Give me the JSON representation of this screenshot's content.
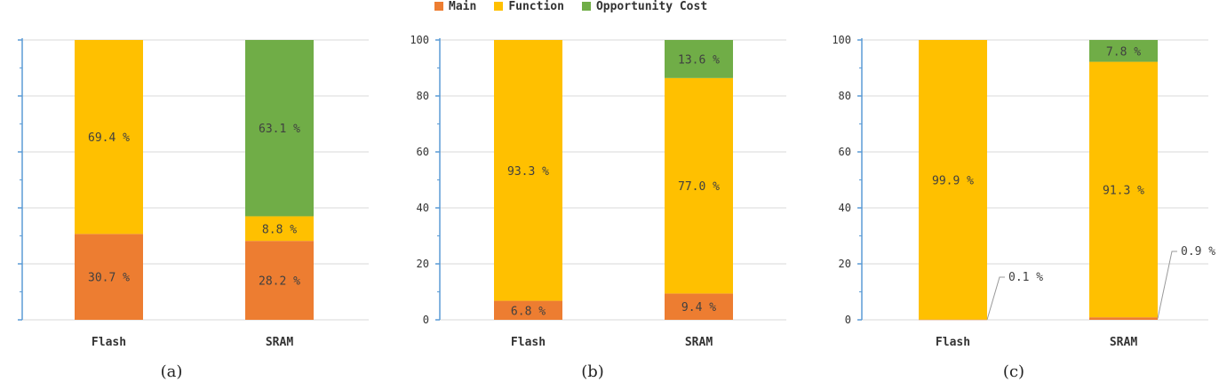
{
  "colors": {
    "main": "#ED7D31",
    "function": "#FFC000",
    "opportunity": "#70AD47",
    "axis": "#5B9BD5",
    "grid": "#D9D9D9"
  },
  "legend": [
    {
      "key": "main",
      "label": "Main"
    },
    {
      "key": "function",
      "label": "Function"
    },
    {
      "key": "opportunity",
      "label": "Opportunity Cost"
    }
  ],
  "captions": [
    "(a)",
    "(b)",
    "(c)"
  ],
  "chart_data": [
    {
      "type": "bar",
      "stacked": true,
      "categories": [
        "Flash",
        "SRAM"
      ],
      "ylim": [
        0,
        100
      ],
      "yticks": [
        "0",
        "20",
        "40",
        "60",
        "80",
        "100"
      ],
      "series": [
        {
          "name": "Main",
          "key": "main",
          "values": [
            30.7,
            28.2
          ],
          "labels": [
            "30.7 %",
            "28.2 %"
          ]
        },
        {
          "name": "Function",
          "key": "function",
          "values": [
            69.4,
            8.8
          ],
          "labels": [
            "69.4 %",
            "8.8 %"
          ]
        },
        {
          "name": "Opportunity Cost",
          "key": "opportunity",
          "values": [
            0,
            63.1
          ],
          "labels": [
            "",
            "63.1 %"
          ]
        }
      ]
    },
    {
      "type": "bar",
      "stacked": true,
      "categories": [
        "Flash",
        "SRAM"
      ],
      "ylim": [
        0,
        100
      ],
      "yticks": [
        "0",
        "20",
        "40",
        "60",
        "80",
        "100"
      ],
      "series": [
        {
          "name": "Main",
          "key": "main",
          "values": [
            6.8,
            9.4
          ],
          "labels": [
            "6.8 %",
            "9.4 %"
          ]
        },
        {
          "name": "Function",
          "key": "function",
          "values": [
            93.3,
            77.0
          ],
          "labels": [
            "93.3 %",
            "77.0 %"
          ]
        },
        {
          "name": "Opportunity Cost",
          "key": "opportunity",
          "values": [
            0,
            13.6
          ],
          "labels": [
            "",
            "13.6 %"
          ]
        }
      ]
    },
    {
      "type": "bar",
      "stacked": true,
      "categories": [
        "Flash",
        "SRAM"
      ],
      "ylim": [
        0,
        100
      ],
      "yticks": [
        "0",
        "20",
        "40",
        "60",
        "80",
        "100"
      ],
      "series": [
        {
          "name": "Main",
          "key": "main",
          "values": [
            0.1,
            0.9
          ],
          "labels": [
            "0.1 %",
            "0.9 %"
          ],
          "callout": true
        },
        {
          "name": "Function",
          "key": "function",
          "values": [
            99.9,
            91.3
          ],
          "labels": [
            "99.9 %",
            "91.3 %"
          ]
        },
        {
          "name": "Opportunity Cost",
          "key": "opportunity",
          "values": [
            0,
            7.8
          ],
          "labels": [
            "",
            "7.8 %"
          ]
        }
      ]
    }
  ]
}
